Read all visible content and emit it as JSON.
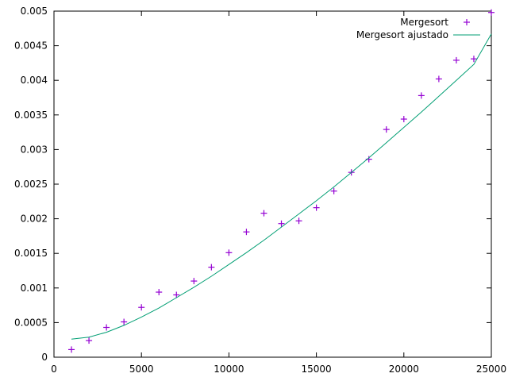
{
  "chart_data": {
    "type": "scatter",
    "title": "",
    "xlabel": "",
    "ylabel": "",
    "xlim": [
      0,
      25000
    ],
    "ylim": [
      0,
      0.005
    ],
    "grid": false,
    "legend_position": "top-right",
    "x_ticks": [
      "0",
      "5000",
      "10000",
      "15000",
      "20000",
      "25000"
    ],
    "y_ticks": [
      "0",
      "0.0005",
      "0.001",
      "0.0015",
      "0.002",
      "0.0025",
      "0.003",
      "0.0035",
      "0.004",
      "0.0045",
      "0.005"
    ],
    "series": [
      {
        "name": "Mergesort",
        "kind": "points",
        "marker": "plus",
        "color": "#9400d3",
        "x": [
          1000,
          2000,
          3000,
          4000,
          5000,
          6000,
          7000,
          8000,
          9000,
          10000,
          11000,
          12000,
          13000,
          14000,
          15000,
          16000,
          17000,
          18000,
          19000,
          20000,
          21000,
          22000,
          23000,
          24000,
          25000
        ],
        "y": [
          0.00011,
          0.00024,
          0.00043,
          0.00051,
          0.00072,
          0.00094,
          0.0009,
          0.0011,
          0.0013,
          0.00151,
          0.00181,
          0.00208,
          0.00193,
          0.00197,
          0.00216,
          0.0024,
          0.00267,
          0.00286,
          0.00329,
          0.00344,
          0.00378,
          0.00402,
          0.00429,
          0.00431,
          0.00498
        ]
      },
      {
        "name": "Mergesort ajustado",
        "kind": "line",
        "color": "#009e73",
        "x": [
          1000,
          2000,
          3000,
          4000,
          5000,
          6000,
          7000,
          8000,
          9000,
          10000,
          11000,
          12000,
          13000,
          14000,
          15000,
          16000,
          17000,
          18000,
          19000,
          20000,
          21000,
          22000,
          23000,
          24000,
          25000
        ],
        "y": [
          0.00026,
          0.00029,
          0.00036,
          0.00046,
          0.00058,
          0.00071,
          0.00086,
          0.00101,
          0.00117,
          0.00134,
          0.00151,
          0.00169,
          0.00188,
          0.00207,
          0.00226,
          0.00246,
          0.00267,
          0.00288,
          0.0031,
          0.00332,
          0.00354,
          0.00377,
          0.004,
          0.00423,
          0.00467
        ]
      }
    ]
  }
}
